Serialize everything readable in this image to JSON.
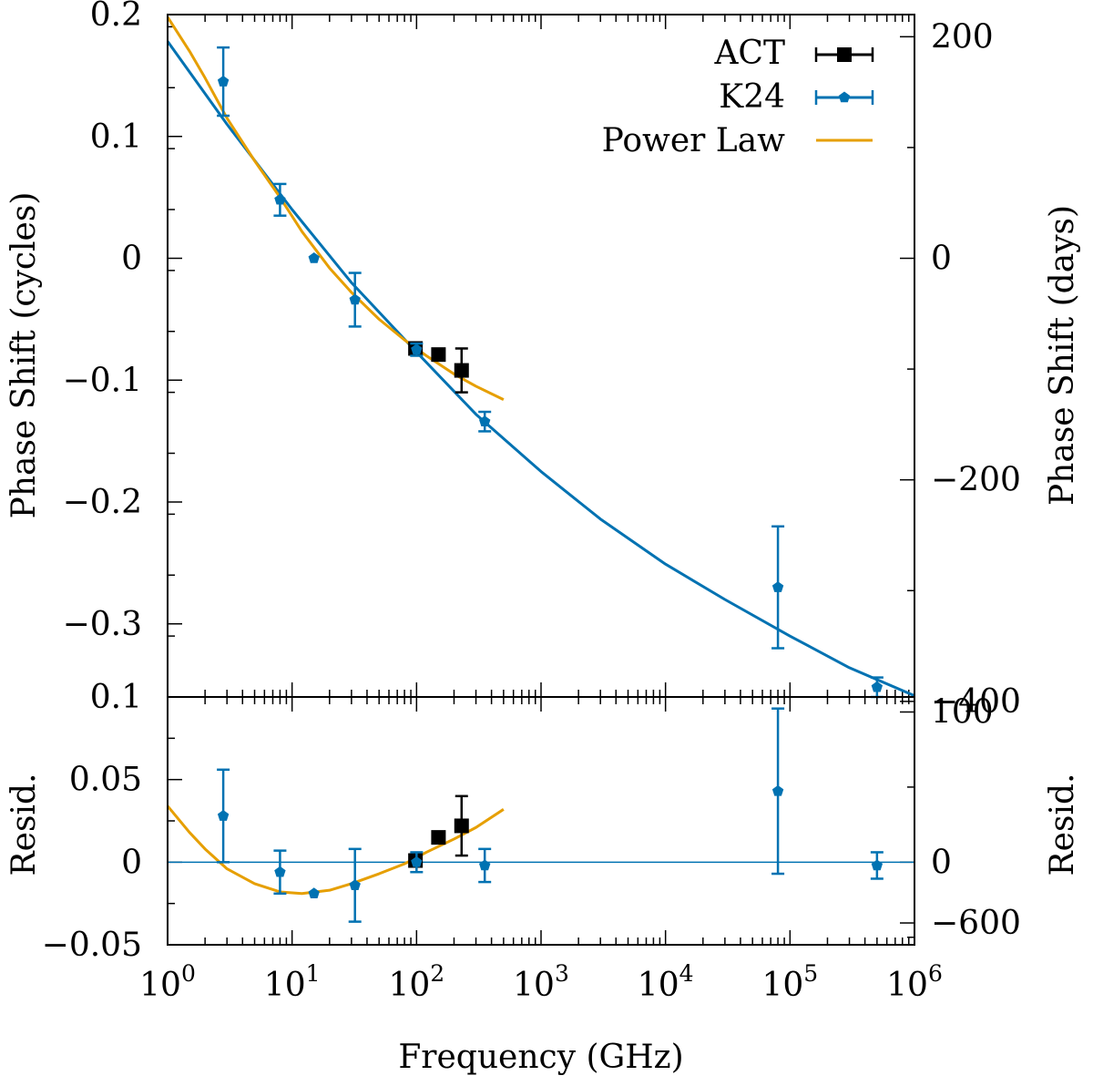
{
  "chart_data": [
    {
      "panel": "main",
      "type": "scatter",
      "xscale": "log",
      "xlim": [
        1,
        1000000
      ],
      "ylim": [
        -0.36,
        0.2
      ],
      "ylabel": "Phase Shift (cycles)",
      "y2label": "Phase Shift (days)",
      "yticks": [
        0.2,
        0.1,
        0,
        -0.1,
        -0.2,
        -0.3
      ],
      "ytick_labels": [
        "0.2",
        "0.1",
        "0",
        "−0.1",
        "−0.2",
        "−0.3"
      ],
      "y2ticks": [
        200,
        0,
        -200,
        -400,
        -600
      ],
      "y2tick_labels": [
        "200",
        "0",
        "−200",
        "−400",
        "−600"
      ],
      "days_per_cycle": 1100,
      "legend_position": "top-right",
      "legend": [
        {
          "label": "ACT",
          "marker": "square",
          "color": "#000000"
        },
        {
          "label": "K24",
          "marker": "pentagon",
          "color": "#0072b2"
        },
        {
          "label": "Power Law",
          "marker": "line",
          "color": "#e69f00"
        }
      ],
      "series": [
        {
          "name": "ACT",
          "color": "#000000",
          "marker": "square",
          "points": [
            {
              "x": 98,
              "y": -0.074,
              "err": 0.003
            },
            {
              "x": 150,
              "y": -0.079,
              "err": 0.003
            },
            {
              "x": 230,
              "y": -0.092,
              "err": 0.018
            }
          ]
        },
        {
          "name": "K24",
          "color": "#0072b2",
          "marker": "pentagon",
          "points": [
            {
              "x": 2.8,
              "y": 0.145,
              "err": 0.028
            },
            {
              "x": 8,
              "y": 0.048,
              "err": 0.013
            },
            {
              "x": 15,
              "y": 0.0,
              "err": 0.0
            },
            {
              "x": 32,
              "y": -0.034,
              "err": 0.022
            },
            {
              "x": 100,
              "y": -0.075,
              "err": 0.005
            },
            {
              "x": 353,
              "y": -0.134,
              "err": 0.008
            },
            {
              "x": 80000,
              "y": -0.27,
              "err": 0.05
            },
            {
              "x": 500000,
              "y": -0.352,
              "err": 0.008
            }
          ]
        }
      ],
      "curves": [
        {
          "name": "K24 fit",
          "color": "#0072b2",
          "points": [
            [
              1,
              0.178
            ],
            [
              3,
              0.11
            ],
            [
              10,
              0.04
            ],
            [
              30,
              -0.02
            ],
            [
              100,
              -0.077
            ],
            [
              300,
              -0.128
            ],
            [
              1000,
              -0.175
            ],
            [
              3000,
              -0.214
            ],
            [
              10000,
              -0.251
            ],
            [
              30000,
              -0.28
            ],
            [
              100000,
              -0.31
            ],
            [
              300000,
              -0.336
            ],
            [
              1000000,
              -0.359
            ]
          ]
        },
        {
          "name": "Power Law",
          "color": "#e69f00",
          "points": [
            [
              1,
              0.198
            ],
            [
              1.5,
              0.17
            ],
            [
              2,
              0.148
            ],
            [
              3,
              0.115
            ],
            [
              5,
              0.08
            ],
            [
              8,
              0.05
            ],
            [
              12,
              0.022
            ],
            [
              20,
              -0.008
            ],
            [
              30,
              -0.028
            ],
            [
              50,
              -0.05
            ],
            [
              80,
              -0.067
            ],
            [
              120,
              -0.08
            ],
            [
              200,
              -0.095
            ],
            [
              300,
              -0.105
            ],
            [
              500,
              -0.116
            ]
          ]
        }
      ]
    },
    {
      "panel": "residuals",
      "type": "scatter",
      "xscale": "log",
      "xlim": [
        1,
        1000000
      ],
      "ylim": [
        -0.05,
        0.1
      ],
      "xlabel": "Frequency (GHz)",
      "ylabel": "Resid.",
      "y2label": "Resid.",
      "xticks": [
        1,
        10,
        100,
        1000,
        10000,
        100000,
        1000000
      ],
      "xtick_labels": [
        {
          "base": "10",
          "exp": "0"
        },
        {
          "base": "10",
          "exp": "1"
        },
        {
          "base": "10",
          "exp": "2"
        },
        {
          "base": "10",
          "exp": "3"
        },
        {
          "base": "10",
          "exp": "4"
        },
        {
          "base": "10",
          "exp": "5"
        },
        {
          "base": "10",
          "exp": "6"
        }
      ],
      "yticks": [
        0.1,
        0.05,
        0,
        -0.05
      ],
      "ytick_labels": [
        "0.1",
        "0.05",
        "0",
        "−0.05"
      ],
      "y2ticks": [
        100,
        0
      ],
      "y2tick_labels": [
        "100",
        "0"
      ],
      "days_per_cycle": 1100,
      "series": [
        {
          "name": "ACT",
          "color": "#000000",
          "marker": "square",
          "points": [
            {
              "x": 98,
              "y": 0.001,
              "err": 0.003
            },
            {
              "x": 150,
              "y": 0.015,
              "err": 0.003
            },
            {
              "x": 230,
              "y": 0.022,
              "err": 0.018
            }
          ]
        },
        {
          "name": "K24",
          "color": "#0072b2",
          "marker": "pentagon",
          "points": [
            {
              "x": 2.8,
              "y": 0.028,
              "err": 0.028
            },
            {
              "x": 8,
              "y": -0.006,
              "err": 0.013
            },
            {
              "x": 15,
              "y": -0.019,
              "err": 0.0
            },
            {
              "x": 32,
              "y": -0.014,
              "err": 0.022
            },
            {
              "x": 100,
              "y": 0.0,
              "err": 0.006
            },
            {
              "x": 353,
              "y": -0.002,
              "err": 0.01
            },
            {
              "x": 80000,
              "y": 0.043,
              "err": 0.05
            },
            {
              "x": 500000,
              "y": -0.002,
              "err": 0.008
            }
          ]
        }
      ],
      "curves": [
        {
          "name": "zero line",
          "color": "#0072b2",
          "points": [
            [
              1,
              0
            ],
            [
              1000000,
              0
            ]
          ]
        },
        {
          "name": "Power Law residual",
          "color": "#e69f00",
          "points": [
            [
              1,
              0.034
            ],
            [
              1.5,
              0.018
            ],
            [
              2,
              0.008
            ],
            [
              3,
              -0.004
            ],
            [
              5,
              -0.013
            ],
            [
              8,
              -0.018
            ],
            [
              12,
              -0.019
            ],
            [
              20,
              -0.017
            ],
            [
              30,
              -0.013
            ],
            [
              50,
              -0.007
            ],
            [
              80,
              -0.001
            ],
            [
              120,
              0.006
            ],
            [
              200,
              0.014
            ],
            [
              300,
              0.021
            ],
            [
              500,
              0.032
            ]
          ]
        }
      ]
    }
  ]
}
